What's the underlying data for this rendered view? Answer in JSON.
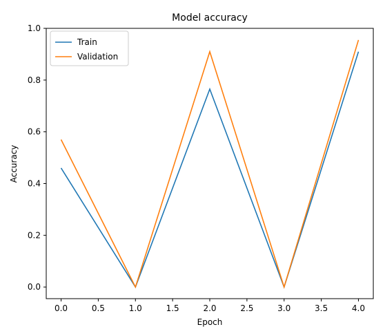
{
  "chart_data": {
    "type": "line",
    "title": "Model accuracy",
    "xlabel": "Epoch",
    "ylabel": "Accuracy",
    "x": [
      0,
      1,
      2,
      3,
      4
    ],
    "xlim": [
      -0.2,
      4.2
    ],
    "ylim": [
      -0.045,
      1.0
    ],
    "xticks": [
      0.0,
      0.5,
      1.0,
      1.5,
      2.0,
      2.5,
      3.0,
      3.5,
      4.0
    ],
    "xtick_labels": [
      "0.0",
      "0.5",
      "1.0",
      "1.5",
      "2.0",
      "2.5",
      "3.0",
      "3.5",
      "4.0"
    ],
    "yticks": [
      0.0,
      0.2,
      0.4,
      0.6,
      0.8,
      1.0
    ],
    "ytick_labels": [
      "0.0",
      "0.2",
      "0.4",
      "0.6",
      "0.8",
      "1.0"
    ],
    "grid": false,
    "legend_position": "top-left",
    "series": [
      {
        "name": "Train",
        "color": "#1f77b4",
        "values": [
          0.46,
          0.0,
          0.765,
          0.0,
          0.91
        ]
      },
      {
        "name": "Validation",
        "color": "#ff7f0e",
        "values": [
          0.57,
          0.0,
          0.91,
          0.0,
          0.955
        ]
      }
    ]
  }
}
